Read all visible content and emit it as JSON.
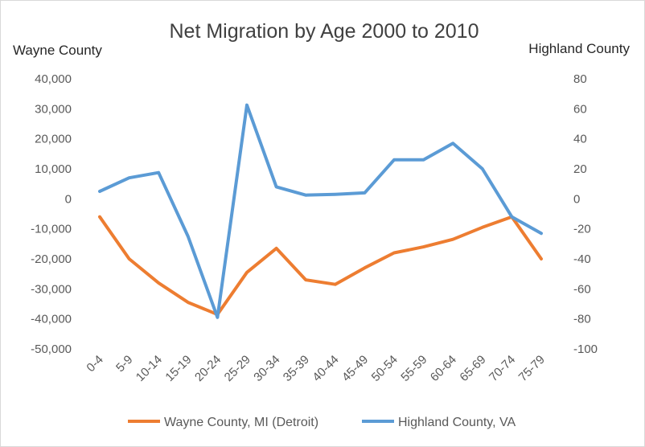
{
  "chart_data": {
    "type": "line",
    "title": "Net Migration by Age 2000 to 2010",
    "y_left_label": "Wayne County",
    "y_right_label": "Highland County",
    "categories": [
      "0-4",
      "5-9",
      "10-14",
      "15-19",
      "20-24",
      "25-29",
      "30-34",
      "35-39",
      "40-44",
      "45-49",
      "50-54",
      "55-59",
      "60-64",
      "65-69",
      "70-74",
      "75-79"
    ],
    "y_left": {
      "min": -50000,
      "max": 40000,
      "step": 10000,
      "tick_labels": [
        "40,000",
        "30,000",
        "20,000",
        "10,000",
        "0",
        "-10,000",
        "-20,000",
        "-30,000",
        "-40,000",
        "-50,000"
      ]
    },
    "y_right": {
      "min": -100,
      "max": 80,
      "step": 20,
      "tick_labels": [
        "80",
        "60",
        "40",
        "20",
        "0",
        "-20",
        "-40",
        "-60",
        "-80",
        "-100"
      ]
    },
    "gridlines": false,
    "legend_position": "bottom",
    "series": [
      {
        "name": "Wayne County, MI (Detroit)",
        "axis": "left",
        "color": "#ED7D31",
        "values": [
          -6000,
          -20000,
          -28000,
          -34500,
          -38500,
          -24500,
          -16500,
          -27000,
          -28500,
          -23000,
          -18000,
          -16000,
          -13500,
          -9500,
          -6000,
          -20000
        ]
      },
      {
        "name": "Highland County, VA",
        "axis": "right",
        "color": "#5B9BD5",
        "values": [
          5,
          14,
          17.5,
          -25,
          -79,
          62.5,
          8,
          2.5,
          3,
          4,
          26,
          26,
          37,
          20,
          -12,
          -23
        ]
      }
    ]
  }
}
